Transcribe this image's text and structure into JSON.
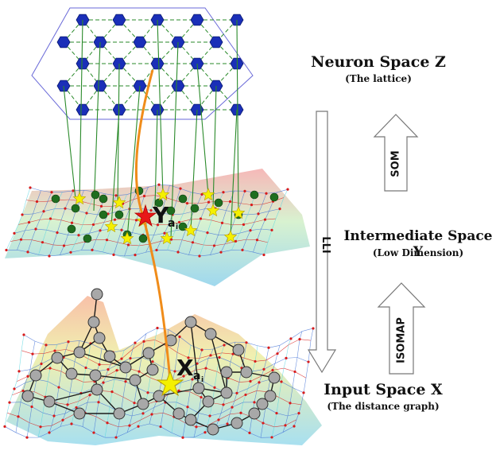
{
  "labels": {
    "neuron_space_title": "Neuron Space Z",
    "neuron_space_sub": "(The lattice)",
    "intermediate_space_title": "Intermediate Space Y",
    "intermediate_space_sub": "(Low Dimension)",
    "input_space_title": "Input Space X",
    "input_space_sub": "(The distance graph)",
    "arrow_som": "SOM",
    "arrow_isomap": "ISOMAP",
    "arrow_lli": "LLI",
    "point_y_main": "Y",
    "point_y_sub": "a",
    "point_y_subsub": "i",
    "point_x_main": "X",
    "point_x_sub": "a",
    "point_x_subsub": "i"
  },
  "colors": {
    "lattice_node": "#1a2fb8",
    "lattice_edge": "#2a8a2a",
    "link_line": "#2a8a2a",
    "green_node": "#1f6e1f",
    "yellow_star": "#f4f000",
    "red_star": "#e81818",
    "trajectory": "#f08c1a",
    "graph_node": "#a8a8a8",
    "mesh_red": "#d81b1b",
    "mesh_blue": "#3f6fd6",
    "mesh_cyan": "#56d5e0",
    "mesh_yellow": "#e8e060"
  }
}
